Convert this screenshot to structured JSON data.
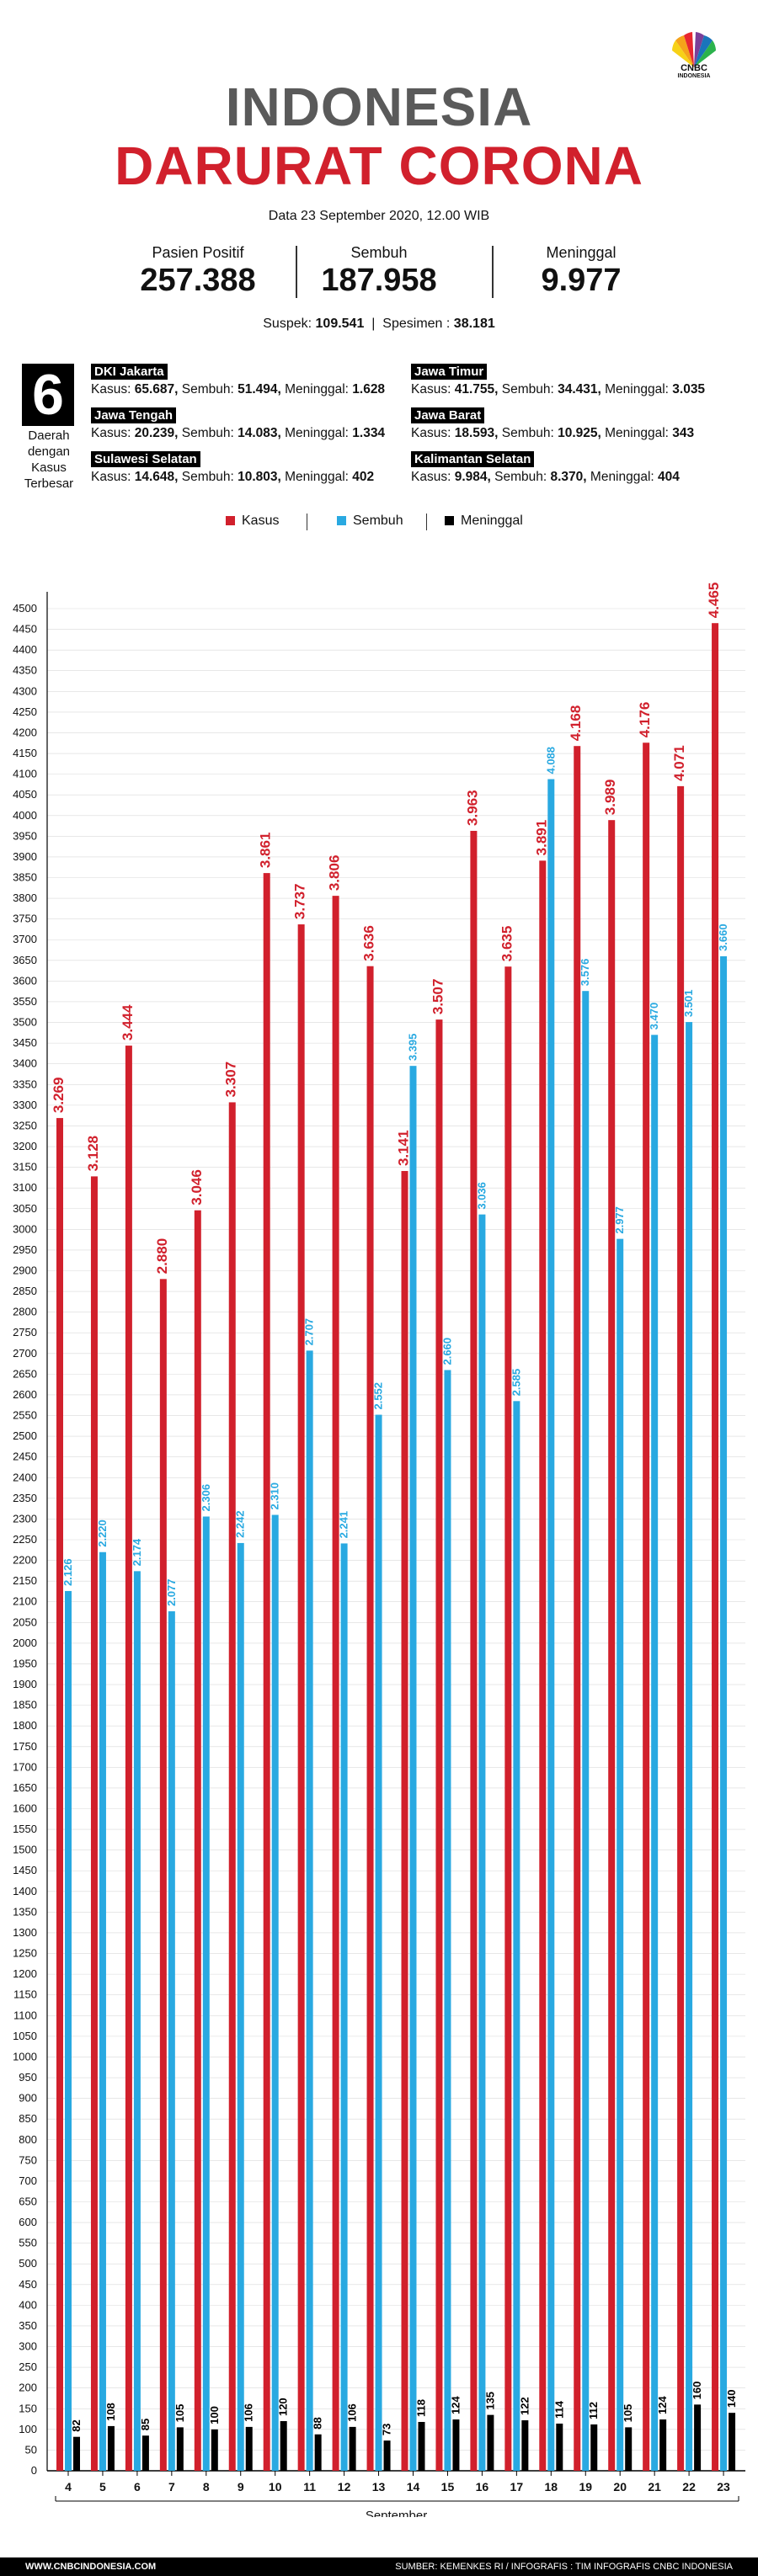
{
  "logo": {
    "name": "CNBC",
    "sub": "INDONESIA"
  },
  "title": {
    "line1": "INDONESIA",
    "line2": "DARURAT CORONA"
  },
  "date": "Data 23 September 2020, 12.00 WIB",
  "stats": [
    {
      "label": "Pasien Positif",
      "value": "257.388"
    },
    {
      "label": "Sembuh",
      "value": "187.958"
    },
    {
      "label": "Meninggal",
      "value": "9.977"
    }
  ],
  "suspek": {
    "label": "Suspek:",
    "value": "109.541",
    "sep": "|",
    "spes_label": "Spesimen :",
    "spes_value": "38.181"
  },
  "top_regions": {
    "count": "6",
    "caption": "Daerah dengan Kasus Terbesar",
    "items": [
      {
        "name": "DKI Jakarta",
        "kasus_label": "Kasus:",
        "kasus": "65.687,",
        "sembuh_label": "Sembuh:",
        "sembuh": "51.494,",
        "meninggal_label": "Meninggal:",
        "meninggal": "1.628"
      },
      {
        "name": "Jawa Timur",
        "kasus_label": "Kasus:",
        "kasus": "41.755,",
        "sembuh_label": "Sembuh:",
        "sembuh": "34.431,",
        "meninggal_label": "Meninggal:",
        "meninggal": "3.035"
      },
      {
        "name": "Jawa Tengah",
        "kasus_label": "Kasus:",
        "kasus": "20.239,",
        "sembuh_label": "Sembuh:",
        "sembuh": "14.083,",
        "meninggal_label": "Meninggal:",
        "meninggal": "1.334"
      },
      {
        "name": "Jawa Barat",
        "kasus_label": "Kasus:",
        "kasus": "18.593,",
        "sembuh_label": "Sembuh:",
        "sembuh": "10.925,",
        "meninggal_label": "Meninggal:",
        "meninggal": "343"
      },
      {
        "name": "Sulawesi Selatan",
        "kasus_label": "Kasus:",
        "kasus": "14.648,",
        "sembuh_label": "Sembuh:",
        "sembuh": "10.803,",
        "meninggal_label": "Meninggal:",
        "meninggal": "402"
      },
      {
        "name": "Kalimantan Selatan",
        "kasus_label": "Kasus:",
        "kasus": "9.984,",
        "sembuh_label": "Sembuh:",
        "sembuh": "8.370,",
        "meninggal_label": "Meninggal:",
        "meninggal": "404"
      }
    ]
  },
  "legend": [
    "Kasus",
    "Sembuh",
    "Meninggal"
  ],
  "colors": {
    "kasus": "#d1202c",
    "sembuh": "#29a9e1",
    "meninggal": "#000000"
  },
  "chart_data": {
    "type": "bar",
    "xlabel": "September",
    "ylabel": "",
    "title": "",
    "ylim": [
      0,
      4500
    ],
    "ytick_step": 50,
    "grid": true,
    "legend_position": "top",
    "categories": [
      "4",
      "5",
      "6",
      "7",
      "8",
      "9",
      "10",
      "11",
      "12",
      "13",
      "14",
      "15",
      "16",
      "17",
      "18",
      "19",
      "20",
      "21",
      "22",
      "23"
    ],
    "series": [
      {
        "name": "Kasus",
        "values": [
          3269,
          3128,
          3444,
          2880,
          3046,
          3307,
          3861,
          3737,
          3806,
          3636,
          3141,
          3507,
          3963,
          3635,
          3891,
          4168,
          3989,
          4176,
          4071,
          4465
        ],
        "labels": [
          "3.269",
          "3.128",
          "3.444",
          "2.880",
          "3.046",
          "3.307",
          "3.861",
          "3.737",
          "3.806",
          "3.636",
          "3.141",
          "3.507",
          "3.963",
          "3.635",
          "3.891",
          "4.168",
          "3.989",
          "4.176",
          "4.071",
          "4.465"
        ]
      },
      {
        "name": "Sembuh",
        "values": [
          2126,
          2220,
          2174,
          2077,
          2306,
          2242,
          2310,
          2707,
          2241,
          2552,
          3395,
          2660,
          3036,
          2585,
          4088,
          3576,
          2977,
          3470,
          3501,
          3660
        ],
        "labels": [
          "2.126",
          "2.220",
          "2.174",
          "2.077",
          "2.306",
          "2.242",
          "2.310",
          "2.707",
          "2.241",
          "2.552",
          "3.395",
          "2.660",
          "3.036",
          "2.585",
          "4.088",
          "3.576",
          "2.977",
          "3.470",
          "3.501",
          "3.660"
        ]
      },
      {
        "name": "Meninggal",
        "values": [
          82,
          108,
          85,
          105,
          100,
          106,
          120,
          88,
          106,
          73,
          118,
          124,
          135,
          122,
          114,
          112,
          105,
          124,
          160,
          140
        ],
        "labels": [
          "82",
          "108",
          "85",
          "105",
          "100",
          "106",
          "120",
          "88",
          "106",
          "73",
          "118",
          "124",
          "135",
          "122",
          "114",
          "112",
          "105",
          "124",
          "160",
          "140"
        ]
      }
    ]
  },
  "footer": {
    "left": "WWW.CNBCINDONESIA.COM",
    "right": "SUMBER: KEMENKES RI / INFOGRAFIS : TIM INFOGRAFIS CNBC INDONESIA"
  }
}
